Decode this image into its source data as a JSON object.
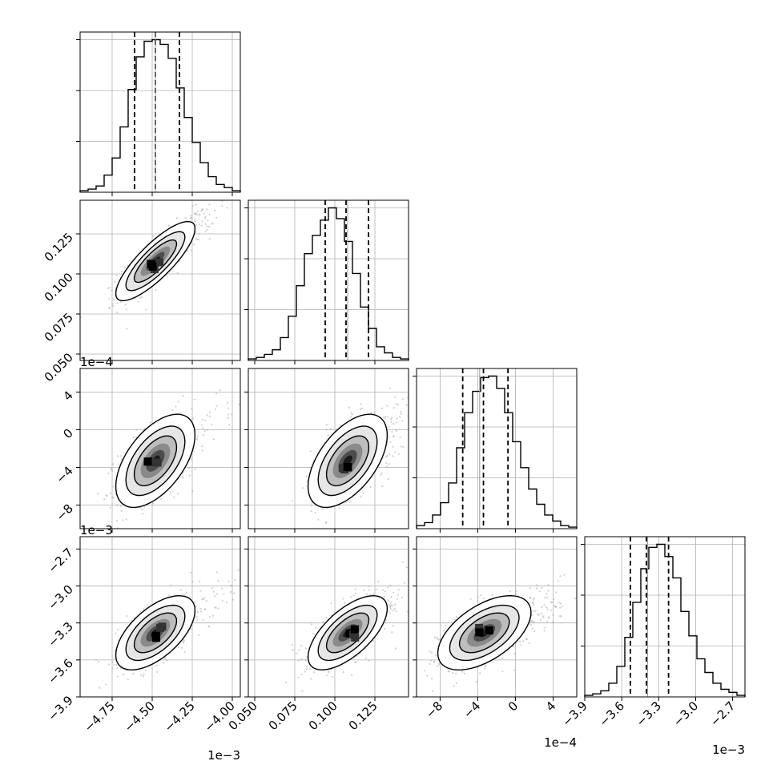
{
  "chart_data": {
    "type": "corner",
    "parameters": [
      {
        "range": [
          -0.00495,
          -0.00395
        ],
        "ticks": [
          -0.00475,
          -0.0045,
          -0.00425,
          -0.004
        ],
        "tick_labels": [
          "−4.75",
          "−4.50",
          "−4.25",
          "−4.00"
        ],
        "offset_label": "1e−3",
        "quantiles": [
          -0.00461,
          -0.00448,
          -0.00433
        ],
        "truth": -0.00448,
        "mean": -0.00448,
        "sd": 0.000115,
        "hist_counts": [
          1,
          2,
          4,
          11,
          22,
          42,
          66,
          87,
          97,
          98,
          95,
          86,
          67,
          48,
          32,
          19,
          10,
          5,
          3,
          1
        ]
      },
      {
        "range": [
          0.046,
          0.146
        ],
        "ticks": [
          0.05,
          0.075,
          0.1,
          0.125
        ],
        "tick_labels": [
          "0.050",
          "0.075",
          "0.100",
          "0.125"
        ],
        "offset_label": "",
        "quantiles": [
          0.094,
          0.107,
          0.121
        ],
        "truth": 0.108,
        "mean": 0.108,
        "sd": 0.0115,
        "hist_counts": [
          1,
          2,
          4,
          7,
          15,
          29,
          49,
          70,
          82,
          92,
          100,
          93,
          78,
          57,
          35,
          21,
          9,
          5,
          2,
          1
        ]
      },
      {
        "range": [
          -0.00105,
          0.00065
        ],
        "ticks": [
          -0.0008,
          -0.0004,
          0,
          0.0004
        ],
        "tick_labels": [
          "−8",
          "−4",
          "0",
          "4"
        ],
        "offset_label": "1e−4",
        "quantiles": [
          -0.00056,
          -0.00034,
          -8e-05
        ],
        "truth": -0.00038,
        "mean": -0.00033,
        "sd": 0.00023,
        "hist_counts": [
          2,
          4,
          9,
          17,
          30,
          53,
          76,
          90,
          99,
          100,
          92,
          76,
          57,
          40,
          26,
          16,
          9,
          5,
          2,
          1
        ]
      },
      {
        "range": [
          -0.0039,
          -0.0026
        ],
        "ticks": [
          -0.0039,
          -0.0036,
          -0.0033,
          -0.003,
          -0.0027
        ],
        "tick_labels": [
          "−3.9",
          "−3.6",
          "−3.3",
          "−3.0",
          "−2.7"
        ],
        "offset_label": "1e−3",
        "quantiles": [
          -0.00353,
          -0.0034,
          -0.00322
        ],
        "truth": -0.00339,
        "mean": -0.00338,
        "sd": 0.00014,
        "hist_counts": [
          1,
          2,
          4,
          9,
          20,
          39,
          62,
          84,
          98,
          100,
          92,
          78,
          56,
          40,
          25,
          16,
          9,
          5,
          3,
          1
        ]
      }
    ],
    "correlations": [
      [
        1.0,
        0.82,
        0.55,
        0.6
      ],
      [
        0.82,
        1.0,
        0.55,
        0.65
      ],
      [
        0.55,
        0.55,
        1.0,
        0.55
      ],
      [
        0.6,
        0.65,
        0.55,
        1.0
      ]
    ],
    "grid": true,
    "contour_levels": 3
  }
}
